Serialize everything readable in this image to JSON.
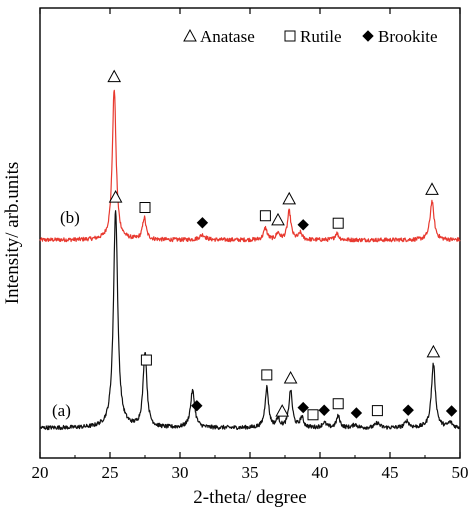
{
  "chart_data": {
    "type": "line",
    "title": "",
    "xlabel": "2-theta/ degree",
    "ylabel": "Intensity/ arb.units",
    "xlim": [
      20,
      50
    ],
    "x_ticks": [
      "20",
      "25",
      "30",
      "35",
      "40",
      "45",
      "50"
    ],
    "grid": false,
    "legend_position": "top-right",
    "legend": [
      {
        "marker": "triangle",
        "label": "Anatase"
      },
      {
        "marker": "square",
        "label": "Rutile"
      },
      {
        "marker": "diamond",
        "label": "Brookite"
      }
    ],
    "series": [
      {
        "name": "(b)",
        "color": "#e8392f",
        "baseline": 0.0,
        "noise": 0.012,
        "peaks": [
          {
            "x": 25.3,
            "h": 0.9,
            "w": 0.16
          },
          {
            "x": 27.45,
            "h": 0.13,
            "w": 0.15
          },
          {
            "x": 31.6,
            "h": 0.03,
            "w": 0.25
          },
          {
            "x": 36.1,
            "h": 0.07,
            "w": 0.15
          },
          {
            "x": 37.0,
            "h": 0.04,
            "w": 0.15
          },
          {
            "x": 37.8,
            "h": 0.17,
            "w": 0.15
          },
          {
            "x": 38.6,
            "h": 0.04,
            "w": 0.15
          },
          {
            "x": 41.2,
            "h": 0.04,
            "w": 0.15
          },
          {
            "x": 48.0,
            "h": 0.23,
            "w": 0.17
          }
        ],
        "markers": [
          {
            "x": 25.3,
            "type": "triangle"
          },
          {
            "x": 27.5,
            "type": "square"
          },
          {
            "x": 31.6,
            "type": "diamond"
          },
          {
            "x": 36.1,
            "type": "square"
          },
          {
            "x": 37.0,
            "type": "triangle"
          },
          {
            "x": 37.8,
            "type": "triangle"
          },
          {
            "x": 38.8,
            "type": "diamond"
          },
          {
            "x": 41.3,
            "type": "square"
          },
          {
            "x": 48.0,
            "type": "triangle"
          }
        ]
      },
      {
        "name": "(a)",
        "color": "#111111",
        "baseline": 0.0,
        "noise": 0.012,
        "peaks": [
          {
            "x": 25.4,
            "h": 1.3,
            "w": 0.18
          },
          {
            "x": 27.5,
            "h": 0.45,
            "w": 0.16
          },
          {
            "x": 30.9,
            "h": 0.22,
            "w": 0.18
          },
          {
            "x": 36.2,
            "h": 0.24,
            "w": 0.15
          },
          {
            "x": 37.0,
            "h": 0.05,
            "w": 0.15
          },
          {
            "x": 37.9,
            "h": 0.22,
            "w": 0.15
          },
          {
            "x": 38.7,
            "h": 0.06,
            "w": 0.15
          },
          {
            "x": 40.3,
            "h": 0.03,
            "w": 0.18
          },
          {
            "x": 41.3,
            "h": 0.07,
            "w": 0.15
          },
          {
            "x": 42.5,
            "h": 0.02,
            "w": 0.18
          },
          {
            "x": 44.1,
            "h": 0.03,
            "w": 0.18
          },
          {
            "x": 46.2,
            "h": 0.04,
            "w": 0.18
          },
          {
            "x": 48.1,
            "h": 0.38,
            "w": 0.17
          },
          {
            "x": 49.3,
            "h": 0.03,
            "w": 0.18
          }
        ],
        "markers": [
          {
            "x": 25.4,
            "type": "triangle"
          },
          {
            "x": 27.6,
            "type": "square"
          },
          {
            "x": 31.2,
            "type": "diamond"
          },
          {
            "x": 36.2,
            "type": "square"
          },
          {
            "x": 37.9,
            "type": "triangle"
          },
          {
            "x": 37.3,
            "type": "triangle"
          },
          {
            "x": 38.8,
            "type": "diamond"
          },
          {
            "x": 39.5,
            "type": "square"
          },
          {
            "x": 40.3,
            "type": "diamond"
          },
          {
            "x": 41.3,
            "type": "square"
          },
          {
            "x": 42.6,
            "type": "diamond"
          },
          {
            "x": 44.1,
            "type": "square"
          },
          {
            "x": 46.3,
            "type": "diamond"
          },
          {
            "x": 48.1,
            "type": "triangle"
          },
          {
            "x": 49.4,
            "type": "diamond"
          }
        ]
      }
    ]
  }
}
